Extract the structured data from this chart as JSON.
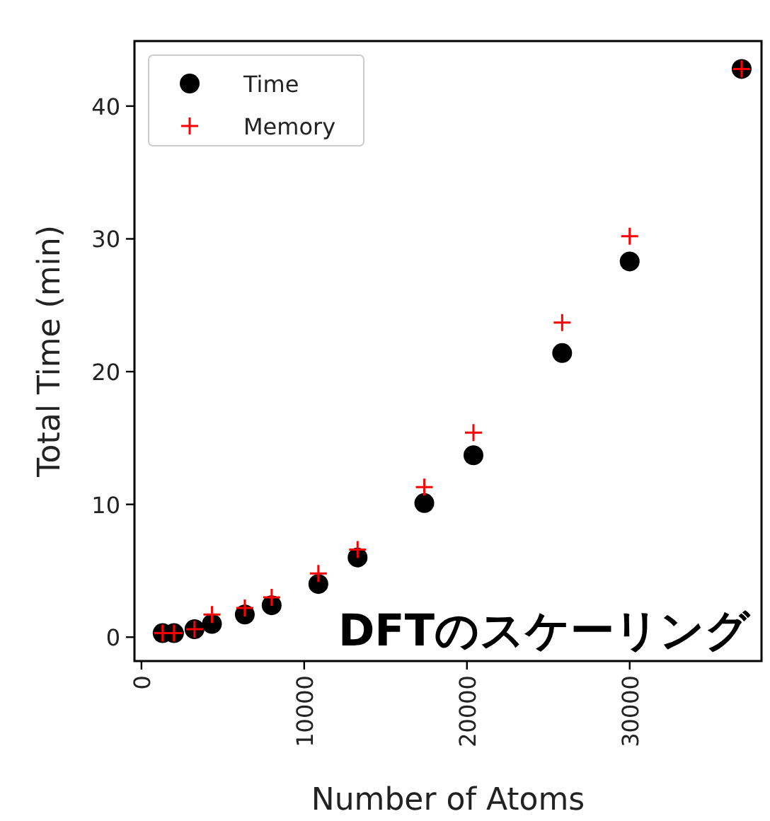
{
  "chart_data": {
    "type": "scatter",
    "xlabel": "Number of Atoms",
    "ylabel": "Total Time (min)",
    "x": [
      1300,
      2000,
      3260,
      4330,
      6350,
      8000,
      10870,
      13280,
      17380,
      20400,
      25850,
      30000,
      36880
    ],
    "series": [
      {
        "name": "Time",
        "color": "#000000",
        "marker": "circle",
        "values": [
          0.3,
          0.3,
          0.6,
          1.0,
          1.7,
          2.4,
          4.0,
          6.0,
          10.1,
          13.7,
          21.4,
          28.3,
          42.8
        ]
      },
      {
        "name": "Memory",
        "color": "#ff0000",
        "marker": "cross",
        "values": [
          0.3,
          0.3,
          0.6,
          1.7,
          2.2,
          3.0,
          4.8,
          6.6,
          11.3,
          15.4,
          23.7,
          30.2,
          42.8
        ]
      }
    ],
    "xlim": [
      -430,
      38100
    ],
    "ylim": [
      -1.8,
      44.9
    ],
    "xticks": [
      0,
      10000,
      20000,
      30000
    ],
    "yticks": [
      0,
      10,
      20,
      30,
      40
    ],
    "grid": false,
    "legend": "top left",
    "annotations": [
      "DFTのスケーリング"
    ]
  }
}
